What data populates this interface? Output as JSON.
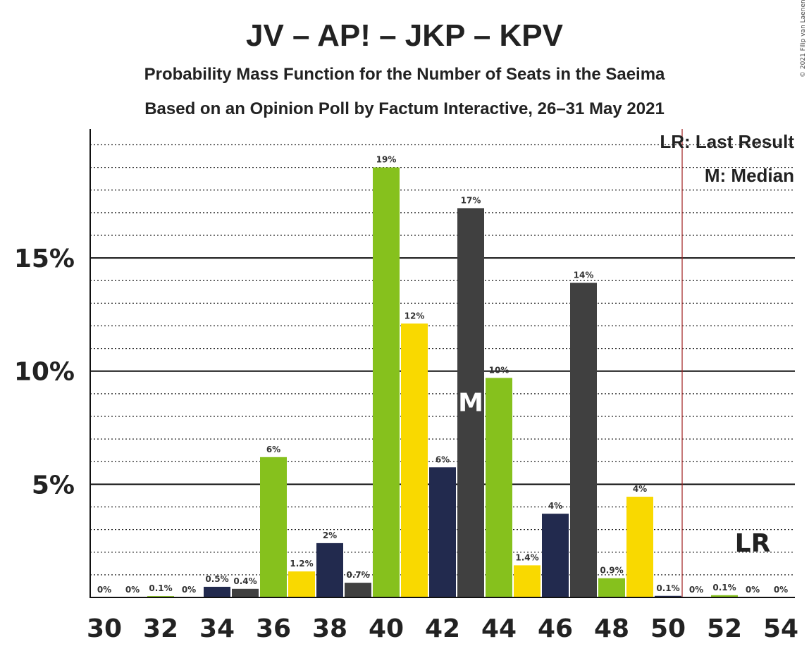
{
  "chart_data": {
    "type": "bar",
    "title": "JV – AP! – JKP – KPV",
    "subtitle": "Probability Mass Function for the Number of Seats in the Saeima",
    "subtitle2": "Based on an Opinion Poll by Factum Interactive, 26–31 May 2021",
    "copyright": "© 2021 Filip van Laenen",
    "legend": {
      "lr": "LR: Last Result",
      "m": "M: Median",
      "position": "top-right"
    },
    "x_tick_labels": [
      "30",
      "32",
      "34",
      "36",
      "38",
      "40",
      "42",
      "44",
      "46",
      "48",
      "50",
      "52",
      "54"
    ],
    "y_tick_labels": [
      "5%",
      "10%",
      "15%"
    ],
    "y_ticks": [
      5,
      10,
      15
    ],
    "ylim": [
      0,
      20.7
    ],
    "median_seat": 43,
    "median_label": "M",
    "last_result_seat": 50.5,
    "last_result_label_seat": 53,
    "last_result_label": "LR",
    "colors": {
      "green": "#86c11d",
      "yellow": "#f9d900",
      "navy": "#222a4e",
      "dark": "#404040",
      "lr_line": "#a02020"
    },
    "bars": [
      {
        "seat": 30,
        "value": 0,
        "label": "0%",
        "color": "dark"
      },
      {
        "seat": 31,
        "value": 0,
        "label": "0%",
        "color": "dark"
      },
      {
        "seat": 32,
        "value": 0.06,
        "label": "0.1%",
        "color": "green"
      },
      {
        "seat": 33,
        "value": 0,
        "label": "0%",
        "color": "dark"
      },
      {
        "seat": 34,
        "value": 0.47,
        "label": "0.5%",
        "color": "navy"
      },
      {
        "seat": 35,
        "value": 0.38,
        "label": "0.4%",
        "color": "dark"
      },
      {
        "seat": 36,
        "value": 6.2,
        "label": "6%",
        "color": "green"
      },
      {
        "seat": 37,
        "value": 1.15,
        "label": "1.2%",
        "color": "yellow"
      },
      {
        "seat": 38,
        "value": 2.4,
        "label": "2%",
        "color": "navy"
      },
      {
        "seat": 39,
        "value": 0.65,
        "label": "0.7%",
        "color": "dark"
      },
      {
        "seat": 40,
        "value": 19.0,
        "label": "19%",
        "color": "green"
      },
      {
        "seat": 41,
        "value": 12.1,
        "label": "12%",
        "color": "yellow"
      },
      {
        "seat": 42,
        "value": 5.75,
        "label": "6%",
        "color": "navy"
      },
      {
        "seat": 43,
        "value": 17.2,
        "label": "17%",
        "color": "dark"
      },
      {
        "seat": 44,
        "value": 9.7,
        "label": "10%",
        "color": "green"
      },
      {
        "seat": 45,
        "value": 1.42,
        "label": "1.4%",
        "color": "yellow"
      },
      {
        "seat": 46,
        "value": 3.7,
        "label": "4%",
        "color": "navy"
      },
      {
        "seat": 47,
        "value": 13.9,
        "label": "14%",
        "color": "dark"
      },
      {
        "seat": 48,
        "value": 0.85,
        "label": "0.9%",
        "color": "green"
      },
      {
        "seat": 49,
        "value": 4.45,
        "label": "4%",
        "color": "yellow"
      },
      {
        "seat": 50,
        "value": 0.07,
        "label": "0.1%",
        "color": "navy"
      },
      {
        "seat": 51,
        "value": 0,
        "label": "0%",
        "color": "dark"
      },
      {
        "seat": 52,
        "value": 0.1,
        "label": "0.1%",
        "color": "green"
      },
      {
        "seat": 53,
        "value": 0,
        "label": "0%",
        "color": "dark"
      },
      {
        "seat": 54,
        "value": 0,
        "label": "0%",
        "color": "dark"
      }
    ]
  }
}
